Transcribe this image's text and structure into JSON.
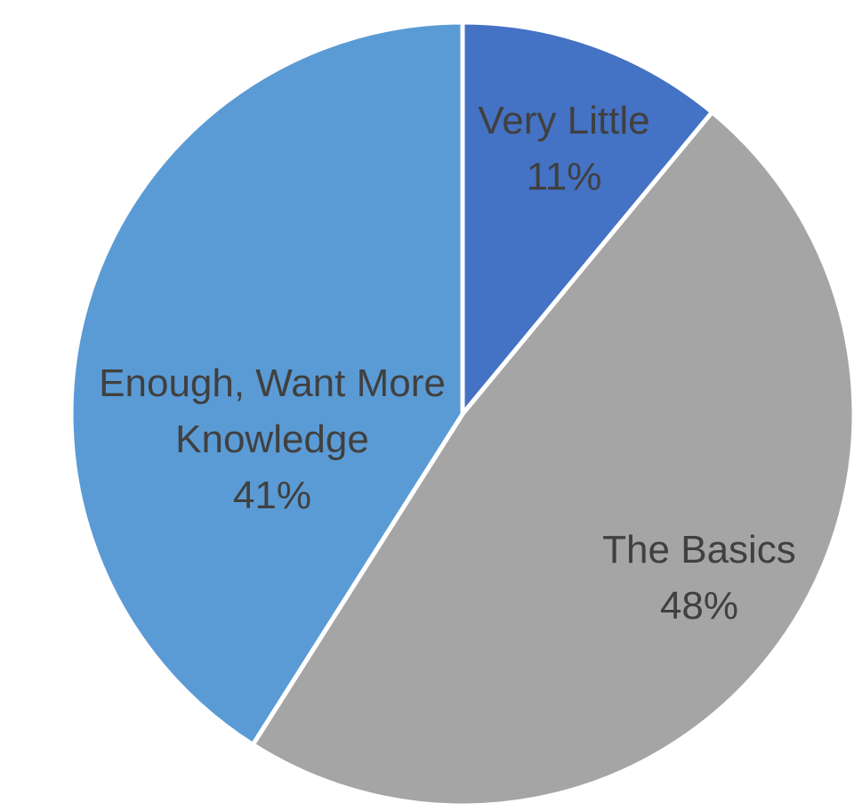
{
  "chart_data": {
    "type": "pie",
    "title": "",
    "start_angle_deg": 0,
    "direction": "clockwise",
    "slices": [
      {
        "label": "Very Little",
        "value": 11,
        "display": "11%",
        "color": "#4472C4"
      },
      {
        "label": "The Basics",
        "value": 48,
        "display": "48%",
        "color": "#A5A5A5"
      },
      {
        "label": "Enough, Want More Knowledge",
        "value": 41,
        "display": "41%",
        "color": "#5B9BD5"
      }
    ],
    "label_color": "#404040",
    "legend": "none"
  }
}
